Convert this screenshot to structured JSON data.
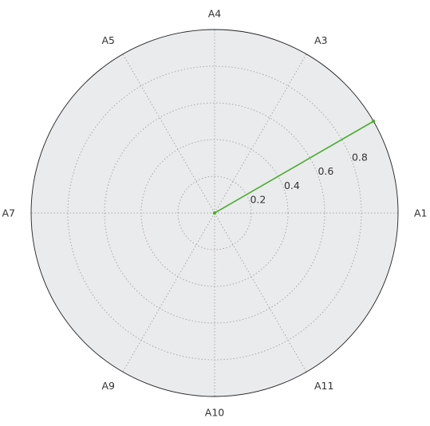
{
  "chart_data": {
    "type": "radar",
    "axes": [
      "A1",
      "A3",
      "A4",
      "A5",
      "A7",
      "A9",
      "A10",
      "A11"
    ],
    "axis_angles_deg": [
      0,
      60,
      90,
      120,
      180,
      240,
      270,
      300
    ],
    "rlim": [
      0,
      1.0
    ],
    "radial_ticks": [
      0.2,
      0.4,
      0.6,
      0.8
    ],
    "radial_tick_labels": [
      "0.2",
      "0.4",
      "0.6",
      "0.8"
    ],
    "radial_label_angle_deg": 22.5,
    "grid": true,
    "series": [
      {
        "color": "#4aae2f",
        "points": [
          {
            "angle_deg": 0,
            "r": 0.0
          },
          {
            "angle_deg": 30,
            "r": 1.0
          }
        ]
      }
    ],
    "background_color": "#eaebed",
    "grid_color": "#aaaaaa",
    "frame_color": "#222222"
  }
}
